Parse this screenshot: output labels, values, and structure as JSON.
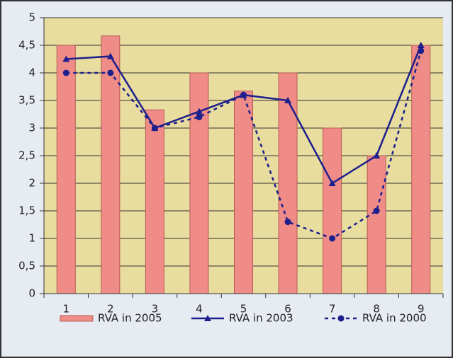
{
  "chart_data": {
    "type": "combo",
    "categories": [
      "1",
      "2",
      "3",
      "4",
      "5",
      "6",
      "7",
      "8",
      "9"
    ],
    "series": [
      {
        "name": "RVA in 2005",
        "type": "bar",
        "color": "#f08c88",
        "values": [
          4.5,
          4.67,
          3.33,
          4,
          3.67,
          4,
          3,
          2.5,
          4.5
        ]
      },
      {
        "name": "RVA in 2003",
        "type": "line",
        "marker": "triangle",
        "dashed": false,
        "color": "#1c1f8c",
        "values": [
          4.25,
          4.3,
          3,
          3.3,
          3.6,
          3.5,
          2,
          2.5,
          4.5
        ]
      },
      {
        "name": "RVA in 2000",
        "type": "line",
        "marker": "circle",
        "dashed": true,
        "color": "#1c1f8c",
        "values": [
          4,
          4,
          3,
          3.2,
          3.6,
          1.3,
          1,
          1.5,
          4.4
        ]
      }
    ],
    "ylim": [
      0,
      5
    ],
    "yticks": [
      0,
      {
        "value": 0.5,
        "label": "0,5"
      },
      1,
      {
        "value": 1.5,
        "label": "1,5"
      },
      2,
      {
        "value": 2.5,
        "label": "2,5"
      },
      3,
      {
        "value": 3.5,
        "label": "3,5"
      },
      4,
      {
        "value": 4.5,
        "label": "4,5"
      },
      5
    ],
    "grid": true,
    "legend": "bottom"
  }
}
